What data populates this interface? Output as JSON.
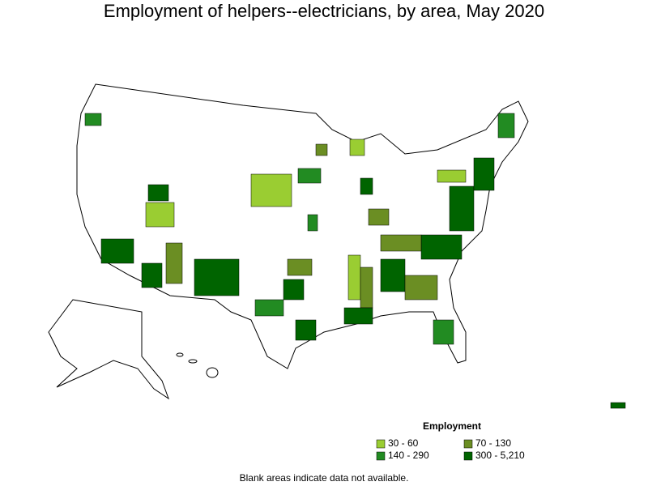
{
  "title": "Employment of helpers--electricians, by area, May 2020",
  "legend": {
    "title": "Employment",
    "items": [
      {
        "label": "30 - 60",
        "color": "#9acd32"
      },
      {
        "label": "70 - 130",
        "color": "#6b8e23"
      },
      {
        "label": "140 - 290",
        "color": "#228b22"
      },
      {
        "label": "300 - 5,210",
        "color": "#006400"
      }
    ]
  },
  "note": "Blank areas indicate data not available."
}
